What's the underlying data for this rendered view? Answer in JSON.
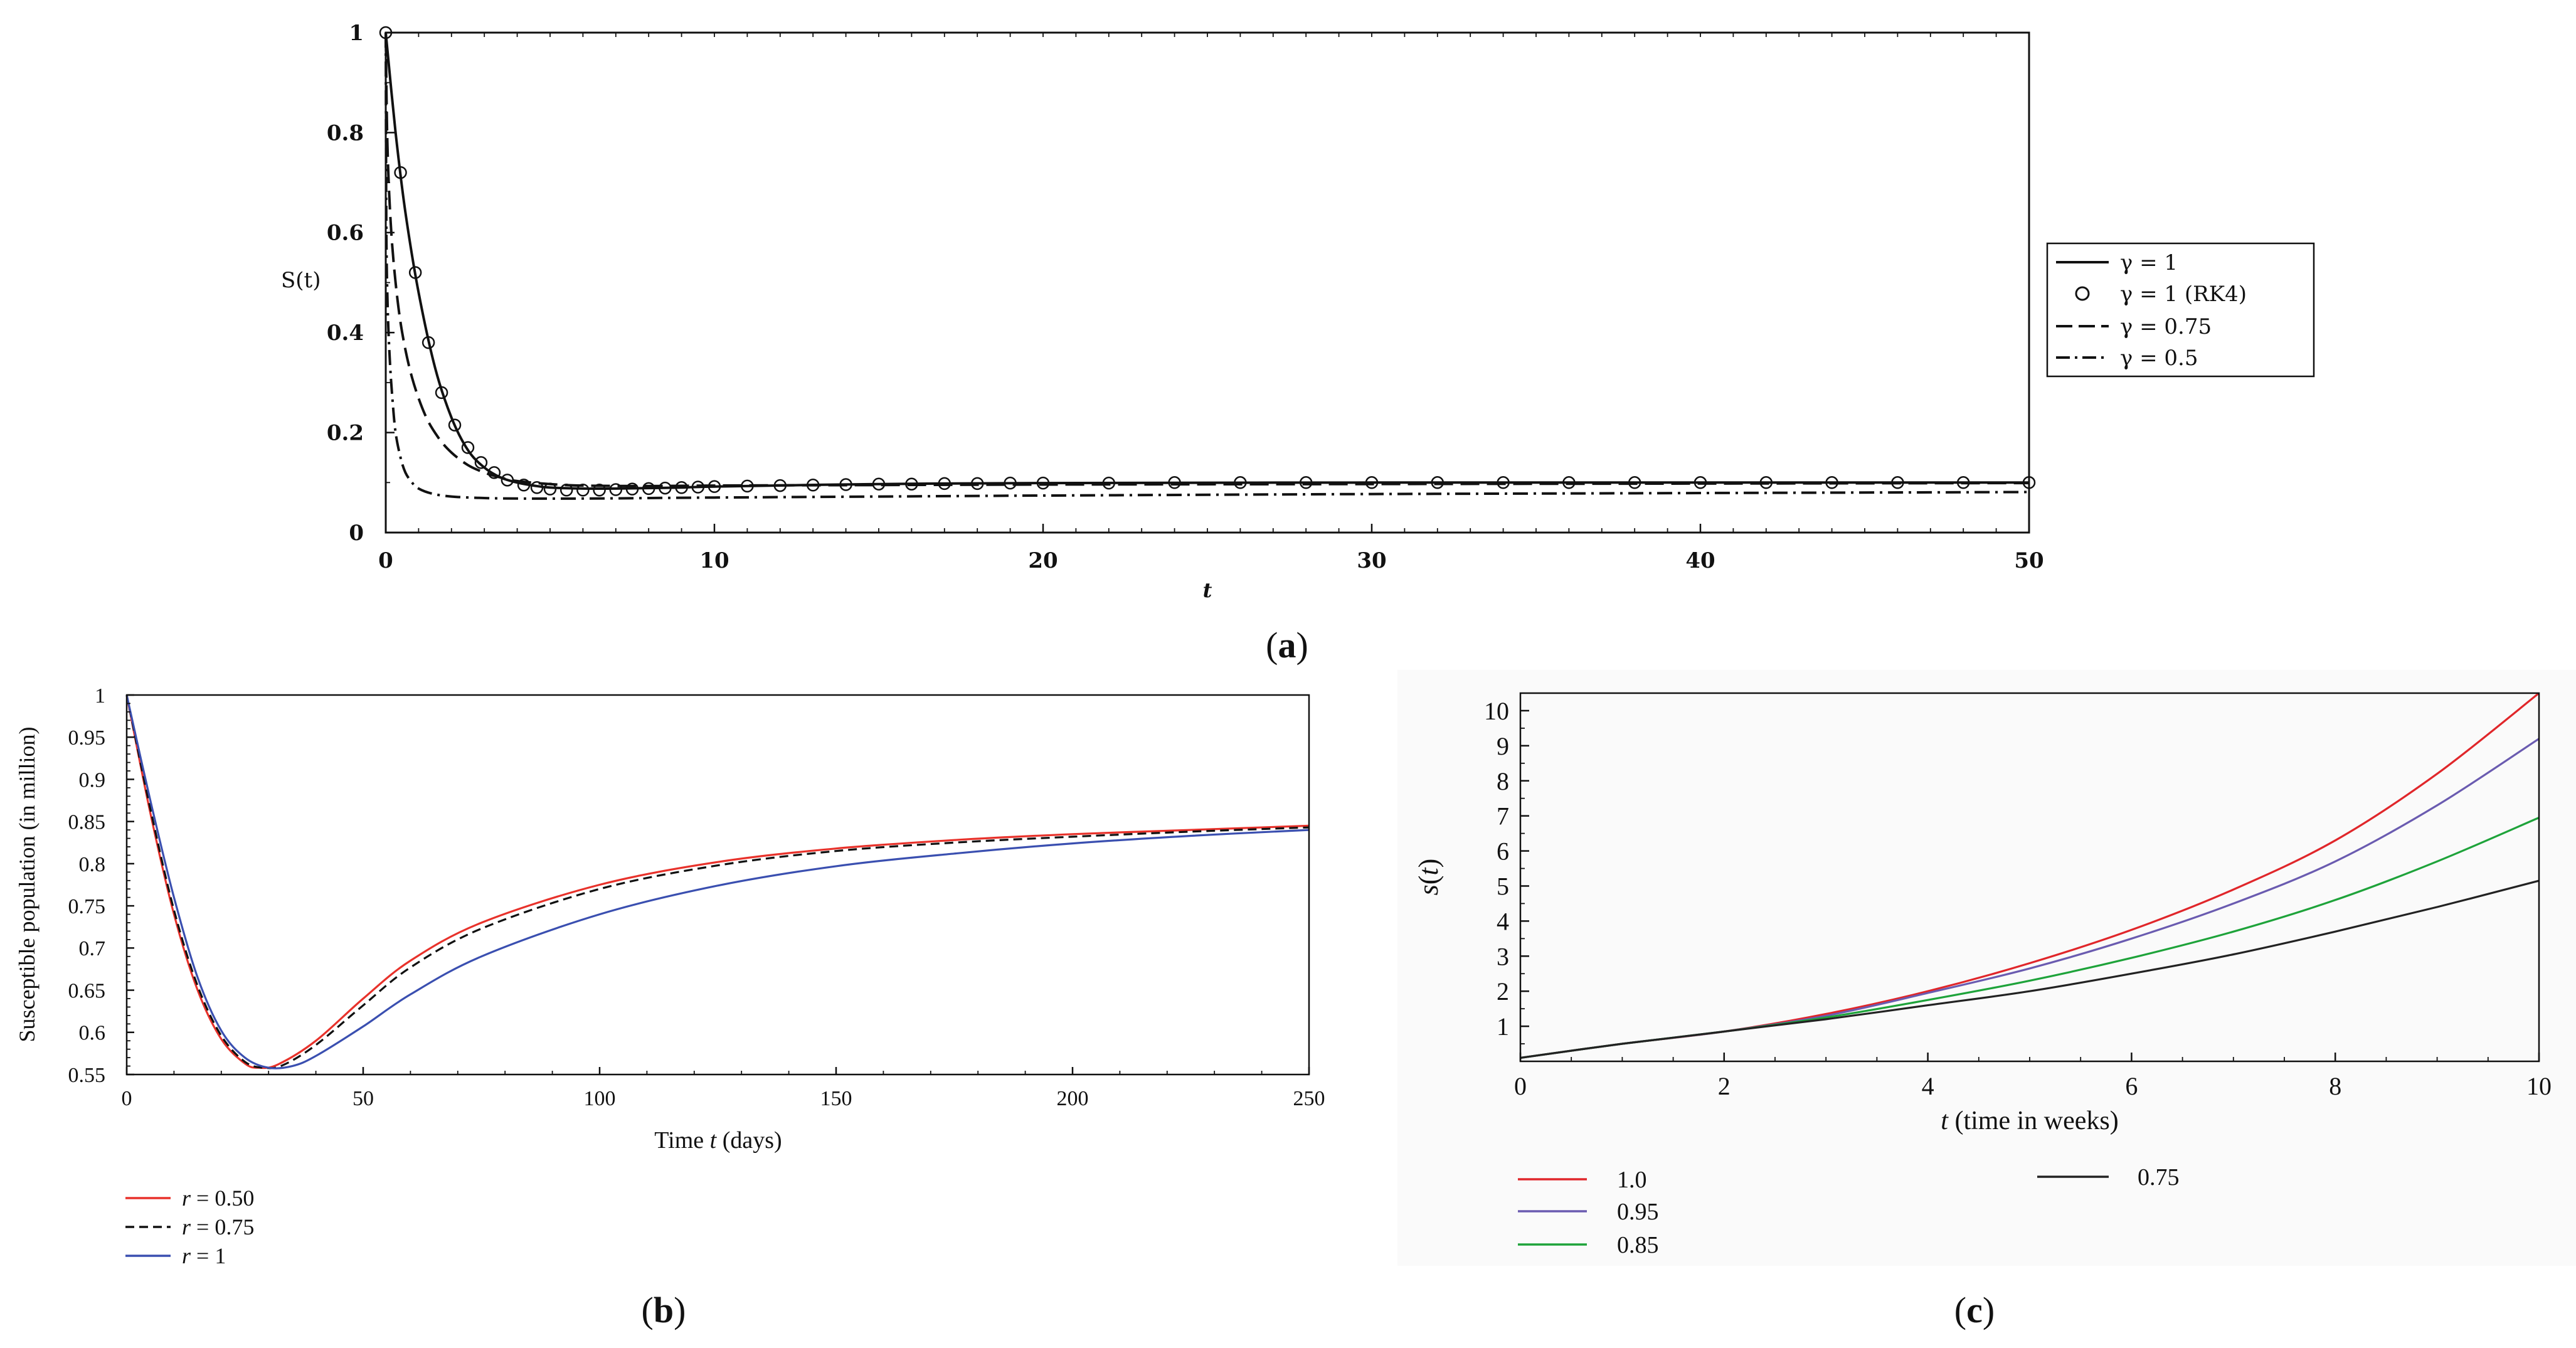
{
  "figure": {
    "panel_labels": [
      "(a)",
      "(b)",
      "(c)"
    ]
  },
  "chart_data": [
    {
      "id": "a",
      "type": "line",
      "caption_open": "(",
      "caption_letter": "a",
      "caption_close": ")",
      "xlabel": "t",
      "ylabel": "S(t)",
      "xlim": [
        0,
        50
      ],
      "ylim": [
        0,
        1
      ],
      "xticks": [
        0,
        10,
        20,
        30,
        40,
        50
      ],
      "yticks": [
        0,
        0.2,
        0.4,
        0.6,
        0.8,
        1
      ],
      "legend_position": "right",
      "series": [
        {
          "name": "γ = 1",
          "style": "solid",
          "color": "#111111",
          "x": [
            0,
            0.3,
            0.6,
            1,
            1.5,
            2,
            2.5,
            3,
            3.5,
            4,
            4.5,
            5,
            6,
            7,
            8,
            9,
            10,
            15,
            20,
            30,
            40,
            50
          ],
          "y": [
            1,
            0.8,
            0.64,
            0.48,
            0.33,
            0.23,
            0.165,
            0.13,
            0.11,
            0.1,
            0.094,
            0.09,
            0.088,
            0.088,
            0.089,
            0.09,
            0.092,
            0.097,
            0.099,
            0.1,
            0.1,
            0.1
          ]
        },
        {
          "name": "γ = 1 (RK4)",
          "style": "circles",
          "color": "#111111",
          "x": [
            0,
            0.45,
            0.9,
            1.3,
            1.7,
            2.1,
            2.5,
            2.9,
            3.3,
            3.7,
            4.2,
            4.6,
            5,
            5.5,
            6,
            6.5,
            7,
            7.5,
            8,
            8.5,
            9,
            9.5,
            10,
            11,
            12,
            13,
            14,
            15,
            16,
            17,
            18,
            19,
            20,
            22,
            24,
            26,
            28,
            30,
            32,
            34,
            36,
            38,
            40,
            42,
            44,
            46,
            48,
            50
          ],
          "y": [
            1,
            0.72,
            0.52,
            0.38,
            0.28,
            0.215,
            0.17,
            0.14,
            0.12,
            0.105,
            0.095,
            0.09,
            0.087,
            0.085,
            0.085,
            0.085,
            0.086,
            0.087,
            0.088,
            0.089,
            0.09,
            0.091,
            0.092,
            0.093,
            0.094,
            0.095,
            0.096,
            0.097,
            0.097,
            0.098,
            0.098,
            0.099,
            0.099,
            0.099,
            0.1,
            0.1,
            0.1,
            0.1,
            0.1,
            0.1,
            0.1,
            0.1,
            0.1,
            0.1,
            0.1,
            0.1,
            0.1,
            0.1
          ]
        },
        {
          "name": "γ = 0.75",
          "style": "dashed",
          "color": "#111111",
          "x": [
            0,
            0.05,
            0.15,
            0.3,
            0.5,
            0.8,
            1.2,
            1.6,
            2,
            2.5,
            3,
            3.5,
            4,
            5,
            6,
            8,
            10,
            15,
            20,
            30,
            40,
            50
          ],
          "y": [
            1,
            0.78,
            0.62,
            0.5,
            0.4,
            0.31,
            0.235,
            0.19,
            0.16,
            0.135,
            0.12,
            0.11,
            0.103,
            0.097,
            0.094,
            0.093,
            0.094,
            0.095,
            0.096,
            0.097,
            0.098,
            0.099
          ]
        },
        {
          "name": "γ = 0.5",
          "style": "dashdot",
          "color": "#111111",
          "x": [
            0,
            0.02,
            0.06,
            0.12,
            0.2,
            0.3,
            0.45,
            0.6,
            0.8,
            1,
            1.4,
            2,
            3,
            4,
            6,
            8,
            10,
            15,
            20,
            30,
            40,
            50
          ],
          "y": [
            1,
            0.6,
            0.45,
            0.35,
            0.27,
            0.2,
            0.15,
            0.12,
            0.1,
            0.088,
            0.078,
            0.072,
            0.069,
            0.068,
            0.068,
            0.069,
            0.07,
            0.072,
            0.074,
            0.077,
            0.079,
            0.081
          ]
        }
      ],
      "legend": [
        "γ = 1",
        "γ = 1 (RK4)",
        "γ = 0.75",
        "γ = 0.5"
      ]
    },
    {
      "id": "b",
      "type": "line",
      "caption_open": "(",
      "caption_letter": "b",
      "caption_close": ")",
      "xlabel_pre": "Time ",
      "xlabel_var": "t",
      "xlabel_post": " (days)",
      "ylabel": "Susceptible population (in million)",
      "xlim": [
        0,
        250
      ],
      "ylim": [
        0.55,
        1
      ],
      "xticks": [
        0,
        50,
        100,
        150,
        200,
        250
      ],
      "yticks": [
        0.55,
        0.6,
        0.65,
        0.7,
        0.75,
        0.8,
        0.85,
        0.9,
        0.95,
        1
      ],
      "legend_position": "below-left",
      "series": [
        {
          "name": "r = 0.50",
          "legend_var": "r",
          "legend_val": " = 0.50",
          "style": "solid",
          "color": "#e8322b",
          "x": [
            0,
            5,
            10,
            15,
            20,
            25,
            28,
            32,
            40,
            50,
            60,
            75,
            100,
            125,
            150,
            175,
            200,
            225,
            250
          ],
          "y": [
            1,
            0.86,
            0.74,
            0.65,
            0.592,
            0.563,
            0.558,
            0.562,
            0.59,
            0.64,
            0.685,
            0.73,
            0.775,
            0.802,
            0.818,
            0.828,
            0.835,
            0.84,
            0.845
          ]
        },
        {
          "name": "r = 0.75",
          "legend_var": "r",
          "legend_val": " = 0.75",
          "style": "dashed",
          "color": "#111111",
          "x": [
            0,
            5,
            10,
            15,
            20,
            25,
            29,
            33,
            40,
            50,
            60,
            75,
            100,
            125,
            150,
            175,
            200,
            225,
            250
          ],
          "y": [
            1,
            0.865,
            0.745,
            0.655,
            0.596,
            0.565,
            0.558,
            0.561,
            0.585,
            0.632,
            0.677,
            0.723,
            0.77,
            0.798,
            0.815,
            0.825,
            0.832,
            0.838,
            0.843
          ]
        },
        {
          "name": "r = 1",
          "legend_var": "r",
          "legend_val": " = 1",
          "style": "solid",
          "color": "#3a4fb0",
          "x": [
            0,
            5,
            10,
            15,
            20,
            25,
            30,
            35,
            40,
            50,
            60,
            75,
            100,
            125,
            150,
            175,
            200,
            225,
            250
          ],
          "y": [
            1,
            0.875,
            0.76,
            0.665,
            0.602,
            0.57,
            0.558,
            0.56,
            0.572,
            0.607,
            0.645,
            0.69,
            0.74,
            0.774,
            0.797,
            0.812,
            0.824,
            0.833,
            0.84
          ]
        }
      ],
      "legend": [
        "r = 0.50",
        "r = 0.75",
        "r = 1"
      ]
    },
    {
      "id": "c",
      "type": "line",
      "caption_open": "(",
      "caption_letter": "c",
      "caption_close": ")",
      "xlabel_var": "t",
      "xlabel_post": " (time in weeks)",
      "ylabel_fn": "s",
      "ylabel_open": "(",
      "ylabel_var": "t",
      "ylabel_close": ")",
      "xlim": [
        0,
        10
      ],
      "ylim": [
        0,
        10.5
      ],
      "xticks": [
        0,
        2,
        4,
        6,
        8,
        10
      ],
      "yticks": [
        1,
        2,
        3,
        4,
        5,
        6,
        7,
        8,
        9,
        10
      ],
      "legend_position": "below",
      "series": [
        {
          "name": "1.0",
          "style": "solid",
          "color": "#e0262a",
          "x": [
            0,
            1,
            2,
            3,
            4,
            5,
            6,
            7,
            8,
            9,
            10
          ],
          "y": [
            0.1,
            0.5,
            0.85,
            1.35,
            2.0,
            2.8,
            3.75,
            4.9,
            6.3,
            8.2,
            10.5
          ]
        },
        {
          "name": "0.95",
          "style": "solid",
          "color": "#6a5bb0",
          "x": [
            0,
            1,
            2,
            3,
            4,
            5,
            6,
            7,
            8,
            9,
            10
          ],
          "y": [
            0.1,
            0.5,
            0.85,
            1.3,
            1.95,
            2.65,
            3.5,
            4.5,
            5.7,
            7.3,
            9.2
          ]
        },
        {
          "name": "0.85",
          "style": "solid",
          "color": "#1ea33a",
          "x": [
            0,
            1,
            2,
            3,
            4,
            5,
            6,
            7,
            8,
            9,
            10
          ],
          "y": [
            0.1,
            0.5,
            0.85,
            1.25,
            1.75,
            2.3,
            2.95,
            3.7,
            4.6,
            5.7,
            6.95
          ]
        },
        {
          "name": "0.75",
          "style": "solid",
          "color": "#222222",
          "x": [
            0,
            1,
            2,
            3,
            4,
            5,
            6,
            7,
            8,
            9,
            10
          ],
          "y": [
            0.1,
            0.5,
            0.85,
            1.2,
            1.6,
            2.0,
            2.5,
            3.05,
            3.7,
            4.4,
            5.15
          ]
        }
      ],
      "legend": [
        "1.0",
        "0.95",
        "0.85",
        "0.75"
      ]
    }
  ]
}
